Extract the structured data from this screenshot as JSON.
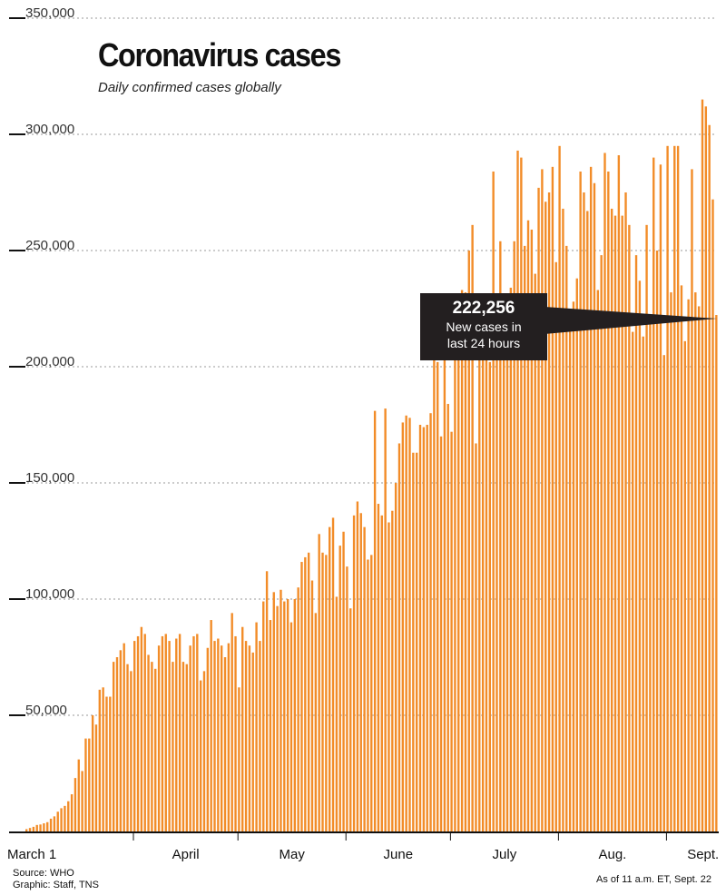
{
  "chart_data": {
    "type": "bar",
    "title": "Coronavirus cases",
    "subtitle": "Daily confirmed cases globally",
    "ylim": [
      0,
      350000
    ],
    "yticks": [
      350000,
      300000,
      250000,
      200000,
      150000,
      100000,
      50000
    ],
    "ytick_labels": [
      "350,000",
      "300,000",
      "250,000",
      "200,000",
      "150,000",
      "100,000",
      "50,000"
    ],
    "month_labels": [
      "March 1",
      "April",
      "May",
      "June",
      "July",
      "Aug.",
      "Sept."
    ],
    "bar_color": "#f28c28",
    "start_label": "March 1",
    "end_label": "Sept. 22",
    "values": [
      1000,
      1500,
      2000,
      2800,
      3000,
      3500,
      4000,
      5500,
      6500,
      8500,
      10000,
      11000,
      13000,
      16000,
      23000,
      31000,
      26000,
      40000,
      40000,
      50000,
      46000,
      61000,
      62000,
      58000,
      58000,
      73000,
      75000,
      78000,
      81000,
      72000,
      69000,
      82000,
      84000,
      88000,
      85000,
      76000,
      73000,
      70000,
      80000,
      84000,
      85000,
      82000,
      73000,
      83000,
      85000,
      73000,
      72000,
      80000,
      84000,
      85000,
      65000,
      69000,
      79000,
      91000,
      82000,
      83000,
      80000,
      75000,
      81000,
      94000,
      84000,
      62000,
      88000,
      82000,
      80000,
      77000,
      90000,
      82000,
      99000,
      112000,
      91000,
      103000,
      97000,
      104000,
      99000,
      100000,
      90000,
      100000,
      105000,
      116000,
      118000,
      120000,
      108000,
      94000,
      128000,
      120000,
      119000,
      131000,
      135000,
      101000,
      123000,
      129000,
      114000,
      96000,
      136000,
      142000,
      137000,
      131000,
      117000,
      119000,
      181000,
      141000,
      136000,
      182000,
      133000,
      138000,
      150000,
      167000,
      176000,
      179000,
      178000,
      163000,
      163000,
      175000,
      174000,
      175000,
      180000,
      212000,
      202000,
      170000,
      219000,
      184000,
      172000,
      219000,
      225000,
      233000,
      232000,
      250000,
      261000,
      167000,
      225000,
      225000,
      214000,
      202000,
      284000,
      213000,
      254000,
      218000,
      226000,
      234000,
      254000,
      293000,
      290000,
      252000,
      263000,
      259000,
      240000,
      277000,
      285000,
      271000,
      275000,
      286000,
      245000,
      295000,
      268000,
      252000,
      219000,
      228000,
      238000,
      284000,
      275000,
      267000,
      286000,
      279000,
      233000,
      248000,
      292000,
      284000,
      268000,
      265000,
      291000,
      265000,
      275000,
      261000,
      215000,
      248000,
      237000,
      213000,
      261000,
      221000,
      290000,
      250000,
      287000,
      205000,
      295000,
      232000,
      295000,
      295000,
      235000,
      211000,
      229000,
      285000,
      232000,
      226000,
      315000,
      312000,
      304000,
      272000,
      222256
    ],
    "annotation": {
      "value_label": "222,256",
      "text_line1": "New cases in",
      "text_line2": "last 24 hours"
    }
  },
  "footer": {
    "source": "Source: WHO",
    "graphic": "Graphic: Staff, TNS",
    "as_of": "As of 11 a.m. ET, Sept. 22"
  }
}
